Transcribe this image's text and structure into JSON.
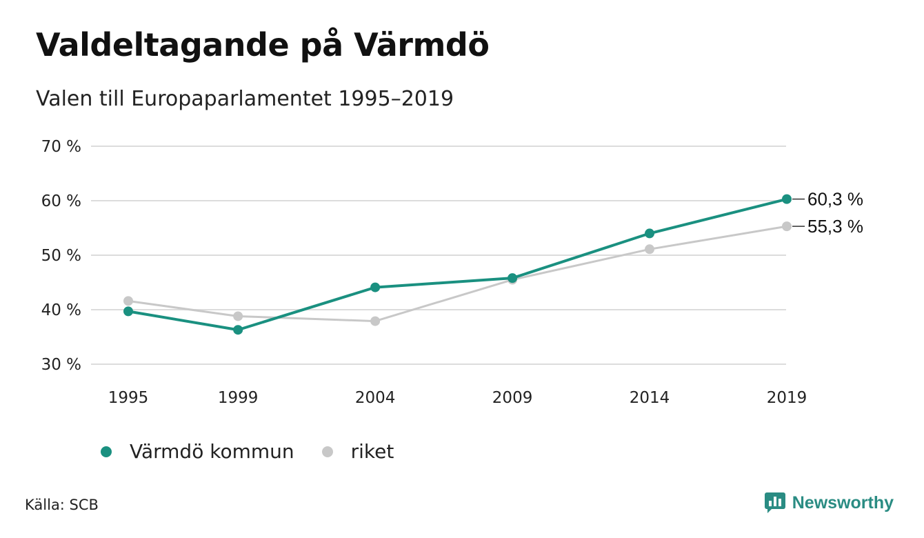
{
  "header": {
    "title": "Valdeltagande på Värmdö",
    "subtitle": "Valen till Europaparlamentet 1995–2019"
  },
  "chart_data": {
    "type": "line",
    "title": "Valdeltagande på Värmdö",
    "subtitle": "Valen till Europaparlamentet 1995–2019",
    "xlabel": "",
    "ylabel": "",
    "x": [
      "1995",
      "1999",
      "2004",
      "2009",
      "2014",
      "2019"
    ],
    "x_values": [
      1995,
      1999,
      2004,
      2009,
      2014,
      2019
    ],
    "ylim": [
      30,
      70
    ],
    "yticks": [
      30,
      40,
      50,
      60,
      70
    ],
    "ytick_labels": [
      "30 %",
      "40 %",
      "50 %",
      "60 %",
      "70 %"
    ],
    "grid": true,
    "legend_position": "bottom-left",
    "series": [
      {
        "name": "Värmdö kommun",
        "color": "#1a9080",
        "values": [
          39.7,
          36.3,
          44.1,
          45.8,
          54.0,
          60.3
        ],
        "end_label": "60,3 %"
      },
      {
        "name": "riket",
        "color": "#c8c8c8",
        "values": [
          41.6,
          38.8,
          37.9,
          45.5,
          51.1,
          55.3
        ],
        "end_label": "55,3 %"
      }
    ]
  },
  "footer": {
    "source": "Källa: SCB",
    "brand": "Newsworthy",
    "brand_icon": "newsworthy-logo-icon"
  }
}
